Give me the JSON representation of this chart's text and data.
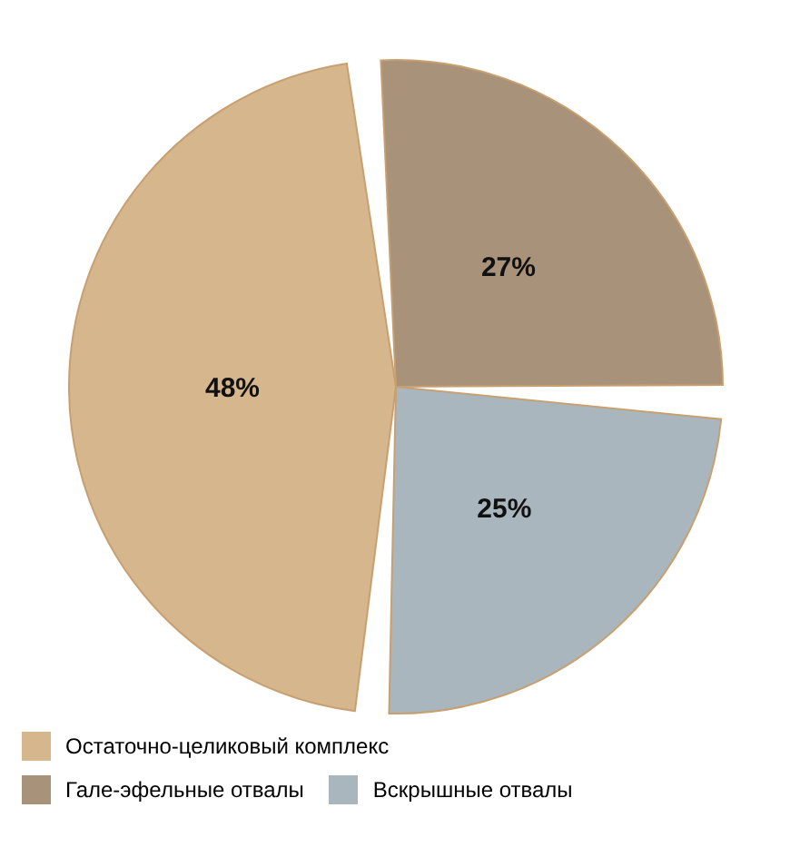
{
  "chart_data": {
    "type": "pie",
    "categories": [
      "Остаточно-целиковый комплекс",
      "Гале-эфельные отвалы",
      "Вскрышные отвалы"
    ],
    "values": [
      48,
      27,
      25
    ],
    "value_labels": [
      "48%",
      "27%",
      "25%"
    ],
    "colors": [
      "#d6b68c",
      "#a8927a",
      "#a9b6be"
    ],
    "legend": "bottom"
  }
}
